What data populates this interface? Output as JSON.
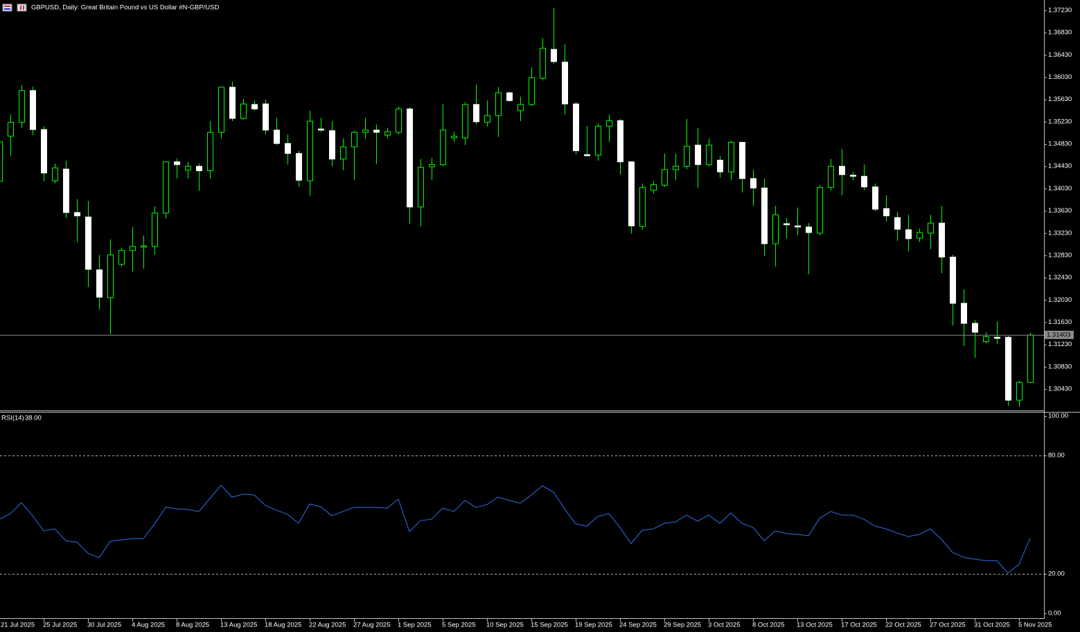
{
  "chart_data": [
    {
      "type": "candlestick",
      "title": "GBPUSD, Daily:  Great Britain Pound vs US Dollar #N-GBP/USD",
      "categories": [
        "21 Jul 2025",
        null,
        null,
        null,
        "25 Jul 2025",
        null,
        null,
        null,
        "30 Jul 2025",
        null,
        null,
        null,
        "4 Aug 2025",
        null,
        null,
        null,
        "8 Aug 2025",
        null,
        null,
        null,
        "13 Aug 2025",
        null,
        null,
        null,
        "18 Aug 2025",
        null,
        null,
        null,
        "22 Aug 2025",
        null,
        null,
        null,
        "27 Aug 2025",
        null,
        null,
        null,
        "1 Sep 2025",
        null,
        null,
        null,
        "5 Sep 2025",
        null,
        null,
        null,
        "10 Sep 2025",
        null,
        null,
        null,
        "15 Sep 2025",
        null,
        null,
        null,
        "19 Sep 2025",
        null,
        null,
        null,
        "24 Sep 2025",
        null,
        null,
        null,
        "29 Sep 2025",
        null,
        null,
        null,
        "3 Oct 2025",
        null,
        null,
        null,
        "8 Oct 2025",
        null,
        null,
        null,
        "13 Oct 2025",
        null,
        null,
        null,
        "17 Oct 2025",
        null,
        null,
        null,
        "22 Oct 2025",
        null,
        null,
        null,
        "27 Oct 2025",
        null,
        null,
        null,
        "31 Oct 2025",
        null,
        null,
        null,
        "5 Nov 2025",
        null
      ],
      "open": [
        1.3416,
        1.3497,
        1.3522,
        1.3579,
        1.3509,
        1.3417,
        1.3438,
        1.336,
        1.3352,
        1.3257,
        1.3207,
        1.3267,
        1.3292,
        1.3298,
        1.3299,
        1.3359,
        1.3451,
        1.3436,
        1.3443,
        1.3435,
        1.3504,
        1.3585,
        1.3529,
        1.3554,
        1.3555,
        1.3508,
        1.3484,
        1.3466,
        1.3417,
        1.351,
        1.3507,
        1.3456,
        1.3478,
        1.3504,
        1.3508,
        1.3499,
        1.3504,
        1.3546,
        1.337,
        1.3442,
        1.3446,
        1.3494,
        1.3494,
        1.3554,
        1.3522,
        1.3534,
        1.3575,
        1.3543,
        1.3554,
        1.3601,
        1.3653,
        1.363,
        1.3555,
        1.3464,
        1.3463,
        1.3515,
        1.3525,
        1.3451,
        1.3335,
        1.34,
        1.3409,
        1.3437,
        1.3443,
        1.3481,
        1.3446,
        1.3454,
        1.3433,
        1.3486,
        1.3421,
        1.3404,
        1.3304,
        1.334,
        1.3336,
        1.3334,
        1.3323,
        1.3405,
        1.3443,
        1.3427,
        1.3425,
        1.3406,
        1.3367,
        1.3351,
        1.3329,
        1.3314,
        1.3323,
        1.3341,
        1.328,
        1.3197,
        1.3161,
        1.3128,
        1.3136,
        1.3136,
        1.3023,
        1.3055
      ],
      "high": [
        1.3493,
        1.3536,
        1.3589,
        1.3586,
        1.3515,
        1.3448,
        1.3453,
        1.3384,
        1.3381,
        1.3284,
        1.3312,
        1.3297,
        1.3334,
        1.3319,
        1.3371,
        1.3452,
        1.3457,
        1.3451,
        1.3448,
        1.3524,
        1.3585,
        1.3595,
        1.3564,
        1.3561,
        1.3563,
        1.353,
        1.35,
        1.3471,
        1.3543,
        1.353,
        1.3524,
        1.3493,
        1.3507,
        1.353,
        1.3518,
        1.3512,
        1.355,
        1.3549,
        1.3456,
        1.3458,
        1.3555,
        1.3505,
        1.3558,
        1.359,
        1.3561,
        1.3585,
        1.3577,
        1.3568,
        1.3621,
        1.3673,
        1.3727,
        1.3662,
        1.3558,
        1.3515,
        1.352,
        1.3536,
        1.3528,
        1.3452,
        1.3412,
        1.3416,
        1.3466,
        1.3466,
        1.3528,
        1.3512,
        1.3493,
        1.3462,
        1.3489,
        1.3487,
        1.3437,
        1.3421,
        1.3372,
        1.335,
        1.3369,
        1.3341,
        1.3409,
        1.3456,
        1.3474,
        1.3433,
        1.3446,
        1.3412,
        1.3391,
        1.3361,
        1.3356,
        1.3331,
        1.3356,
        1.3372,
        1.3284,
        1.3222,
        1.3167,
        1.3145,
        1.3164,
        1.3139,
        1.3058,
        1.3144
      ],
      "low": [
        1.3412,
        1.3462,
        1.3512,
        1.3499,
        1.3416,
        1.3412,
        1.335,
        1.3307,
        1.3226,
        1.3186,
        1.3141,
        1.3263,
        1.3254,
        1.3259,
        1.3284,
        1.3349,
        1.3421,
        1.3421,
        1.3399,
        1.3421,
        1.3493,
        1.3524,
        1.3527,
        1.3543,
        1.35,
        1.3481,
        1.3446,
        1.3406,
        1.339,
        1.3505,
        1.3443,
        1.3436,
        1.3418,
        1.3493,
        1.3447,
        1.3493,
        1.35,
        1.334,
        1.3335,
        1.3418,
        1.3443,
        1.3487,
        1.3481,
        1.3518,
        1.3514,
        1.3496,
        1.3559,
        1.3524,
        1.3551,
        1.3597,
        1.3627,
        1.3536,
        1.3464,
        1.3461,
        1.3453,
        1.3487,
        1.3428,
        1.3322,
        1.3329,
        1.3394,
        1.3406,
        1.3418,
        1.3438,
        1.3404,
        1.3443,
        1.3423,
        1.3418,
        1.3396,
        1.3372,
        1.3282,
        1.3263,
        1.3313,
        1.3319,
        1.3249,
        1.3319,
        1.34,
        1.3391,
        1.3418,
        1.34,
        1.3362,
        1.3344,
        1.3309,
        1.329,
        1.3307,
        1.3294,
        1.3251,
        1.3157,
        1.312,
        1.3099,
        1.3125,
        1.3124,
        1.3013,
        1.3011,
        1.3054
      ],
      "close": [
        1.3487,
        1.3522,
        1.3579,
        1.3509,
        1.3431,
        1.344,
        1.336,
        1.3354,
        1.3258,
        1.3208,
        1.3284,
        1.3292,
        1.3299,
        1.33,
        1.3359,
        1.3451,
        1.3446,
        1.3443,
        1.3435,
        1.3504,
        1.3585,
        1.3529,
        1.3555,
        1.3546,
        1.3508,
        1.3484,
        1.3466,
        1.3418,
        1.3524,
        1.3508,
        1.3456,
        1.3478,
        1.3504,
        1.3508,
        1.3504,
        1.3505,
        1.3546,
        1.337,
        1.3441,
        1.3446,
        1.3508,
        1.3497,
        1.3554,
        1.3523,
        1.3534,
        1.3575,
        1.3561,
        1.3554,
        1.3602,
        1.3655,
        1.3631,
        1.3555,
        1.3471,
        1.3462,
        1.3515,
        1.3525,
        1.3451,
        1.3336,
        1.3405,
        1.341,
        1.3437,
        1.3443,
        1.3479,
        1.3446,
        1.3481,
        1.3433,
        1.3486,
        1.3421,
        1.3404,
        1.3304,
        1.3356,
        1.3338,
        1.3334,
        1.3324,
        1.3405,
        1.3443,
        1.3428,
        1.3425,
        1.3406,
        1.3366,
        1.3354,
        1.333,
        1.3313,
        1.3324,
        1.3341,
        1.328,
        1.3197,
        1.3161,
        1.3145,
        1.3137,
        1.3134,
        1.3023,
        1.3055,
        1.314
      ],
      "up_color": "#000000",
      "down_color": "#ffffff",
      "line_color": "#00ff00",
      "bid": 1.31403,
      "ylim": [
        1.30045,
        1.37416
      ],
      "yticks": [
        {
          "value": 1.3723,
          "label": "1.37230"
        },
        {
          "value": 1.3683,
          "label": "1.36830"
        },
        {
          "value": 1.3643,
          "label": "1.36430"
        },
        {
          "value": 1.3603,
          "label": "1.36030"
        },
        {
          "value": 1.3563,
          "label": "1.35630"
        },
        {
          "value": 1.3523,
          "label": "1.35230"
        },
        {
          "value": 1.3483,
          "label": "1.34830"
        },
        {
          "value": 1.3443,
          "label": "1.34430"
        },
        {
          "value": 1.3403,
          "label": "1.34030"
        },
        {
          "value": 1.3363,
          "label": "1.33630"
        },
        {
          "value": 1.3323,
          "label": "1.33230"
        },
        {
          "value": 1.3283,
          "label": "1.32830"
        },
        {
          "value": 1.3243,
          "label": "1.32430"
        },
        {
          "value": 1.3203,
          "label": "1.32030"
        },
        {
          "value": 1.3163,
          "label": "1.31630"
        },
        {
          "value": 1.3123,
          "label": "1.31230"
        },
        {
          "value": 1.3083,
          "label": "1.30830"
        },
        {
          "value": 1.3043,
          "label": "1.30430"
        }
      ]
    },
    {
      "type": "line",
      "title": "RSI(14)",
      "current": {
        "value": 38,
        "label": "38.00"
      },
      "color": "#2f6fe8",
      "values": [
        47.7,
        50.5,
        56.1,
        49.5,
        41.8,
        42.8,
        36.8,
        36.1,
        30.5,
        28.1,
        36.5,
        37.2,
        37.9,
        37.9,
        45.3,
        53.7,
        53.0,
        52.6,
        51.6,
        58.2,
        64.9,
        58.9,
        60.4,
        60.0,
        54.7,
        52.3,
        50.2,
        45.6,
        55.4,
        54.0,
        49.5,
        51.6,
        53.7,
        53.7,
        53.7,
        53.3,
        57.9,
        41.4,
        47.0,
        47.7,
        53.3,
        51.6,
        57.2,
        53.7,
        55.1,
        58.9,
        57.2,
        55.8,
        60.0,
        64.6,
        61.4,
        53.0,
        45.3,
        44.2,
        49.1,
        50.5,
        43.5,
        35.4,
        42.1,
        42.8,
        45.6,
        46.3,
        49.8,
        46.7,
        49.8,
        45.6,
        50.9,
        45.6,
        43.5,
        36.8,
        41.8,
        40.4,
        40.0,
        39.3,
        48.1,
        51.6,
        49.8,
        49.8,
        47.7,
        44.2,
        42.8,
        40.7,
        38.9,
        40.0,
        42.8,
        37.5,
        30.9,
        28.4,
        27.4,
        26.7,
        26.7,
        20.4,
        24.9,
        38.0
      ],
      "levels": [
        80,
        20
      ],
      "ylim": [
        -2.1,
        101.75
      ],
      "yticks": [
        {
          "value": 100,
          "label": "100.00"
        },
        {
          "value": 80,
          "label": "80.00"
        },
        {
          "value": 20,
          "label": "20.00"
        },
        {
          "value": 0,
          "label": "0.00"
        }
      ]
    }
  ]
}
